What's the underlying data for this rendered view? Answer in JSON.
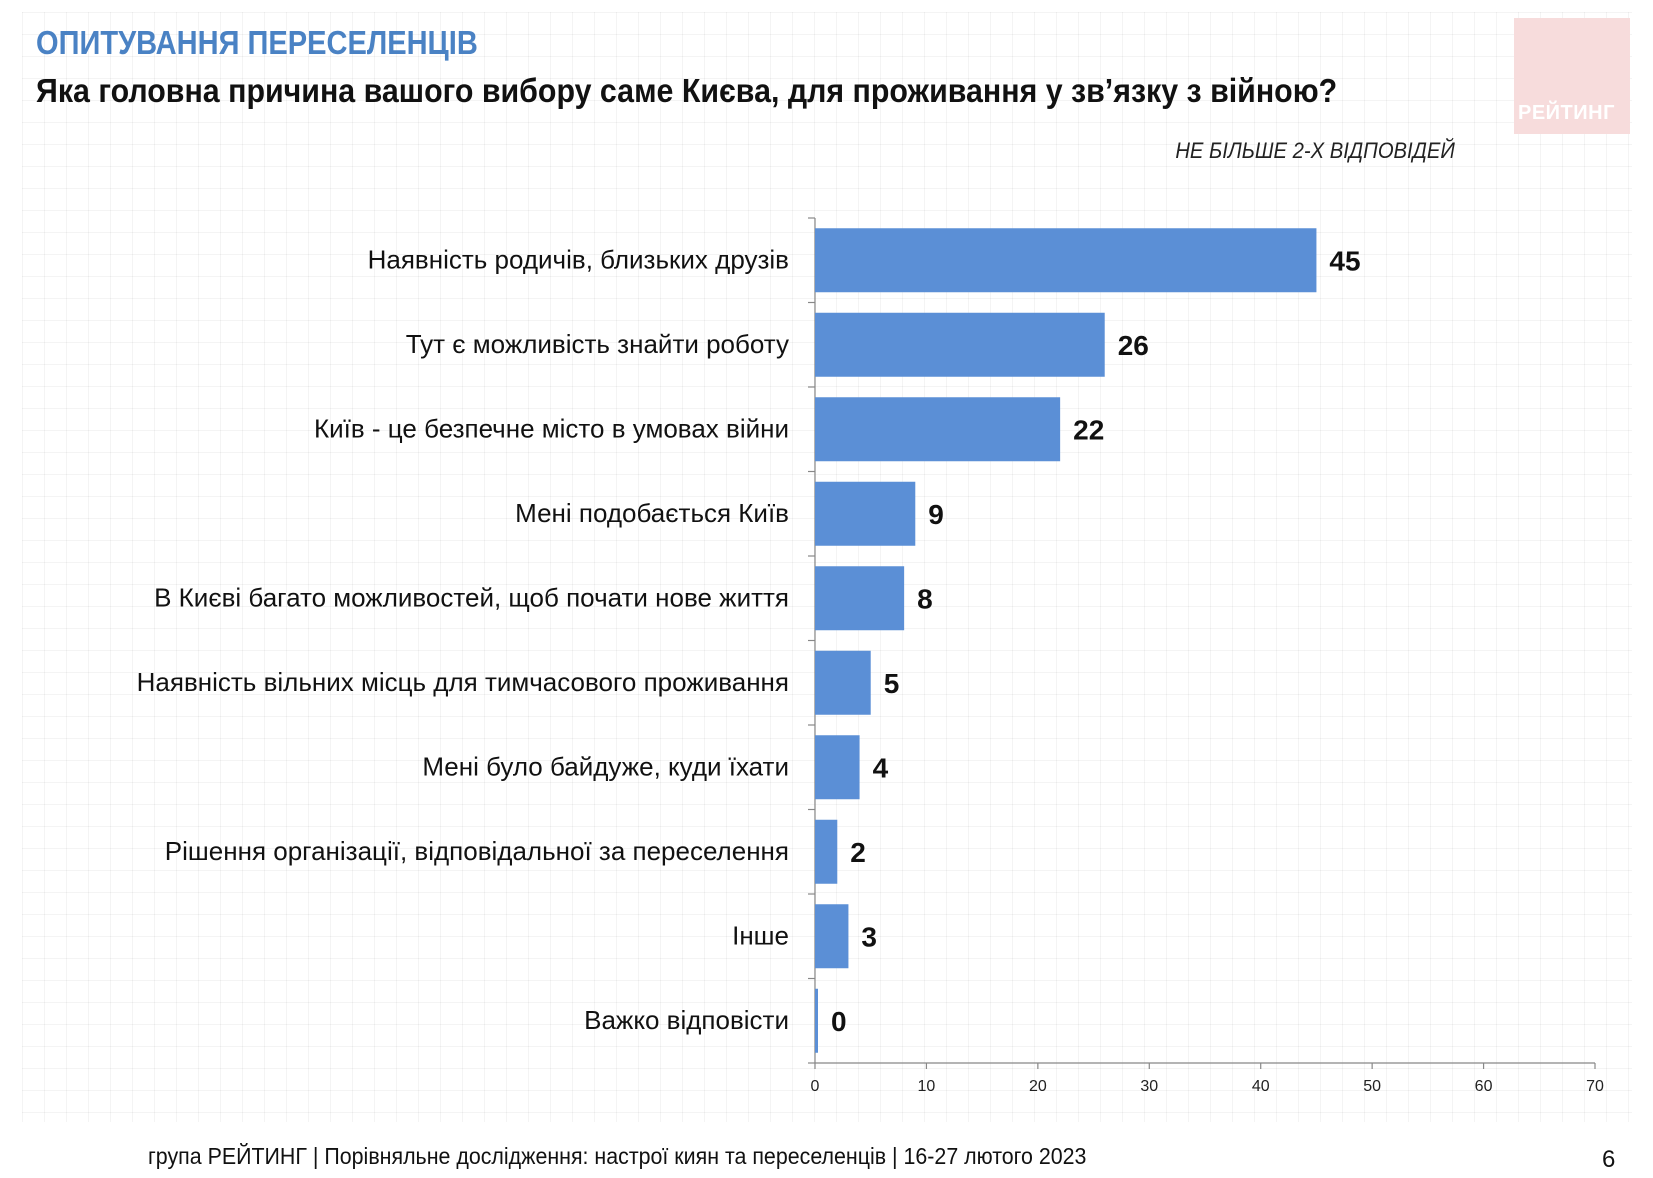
{
  "header": {
    "kicker": "ОПИТУВАННЯ ПЕРЕСЕЛЕНЦІВ",
    "question": "Яка головна причина вашого вибору саме Києва, для проживання у зв’язку з війною?",
    "note": "НЕ БІЛЬШЕ 2-Х ВІДПОВІДЕЙ",
    "logo": "РЕЙТИНГ"
  },
  "footer": {
    "source": "група РЕЙТИНГ | Порівняльне дослідження: настрої киян та переселенців | 16-27 лютого 2023",
    "page": "6"
  },
  "colors": {
    "bar": "#5b8fd6",
    "accent": "#4a82c4",
    "logo_bg": "#f7dcdc"
  },
  "chart_data": {
    "type": "bar",
    "orientation": "horizontal",
    "title": "Яка головна причина вашого вибору саме Києва, для проживання у зв’язку з війною?",
    "categories": [
      "Наявність родичів, близьких друзів",
      "Тут є можливість знайти роботу",
      "Київ - це безпечне місто в умовах війни",
      "Мені подобається Київ",
      "В Києві багато можливостей, щоб почати нове життя",
      "Наявність вільних місць для тимчасового проживання",
      "Мені було байдуже, куди їхати",
      "Рішення організації, відповідальної за переселення",
      "Інше",
      "Важко відповісти"
    ],
    "values": [
      45,
      26,
      22,
      9,
      8,
      5,
      4,
      2,
      3,
      0
    ],
    "xlim": [
      0,
      70
    ],
    "xticks": [
      0,
      10,
      20,
      30,
      40,
      50,
      60,
      70
    ],
    "xlabel": "",
    "ylabel": "",
    "grid": false,
    "data_labels": true
  }
}
